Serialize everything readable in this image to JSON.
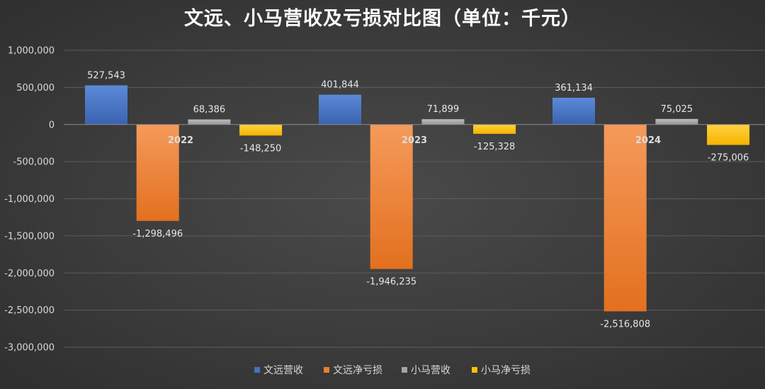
{
  "chart_data": {
    "type": "bar",
    "title": "文远、小马营收及亏损对比图（单位：千元）",
    "categories": [
      "2022",
      "2023",
      "2024"
    ],
    "series": [
      {
        "name": "文远营收",
        "values": [
          527543,
          401844,
          361134
        ],
        "labels": [
          "527,543",
          "401,844",
          "361,134"
        ],
        "color": "#4472c4"
      },
      {
        "name": "文远净亏损",
        "values": [
          -1298496,
          -1946235,
          -2516808
        ],
        "labels": [
          "-1,298,496",
          "-1,946,235",
          "-2,516,808"
        ],
        "color": "#ed7d31"
      },
      {
        "name": "小马营收",
        "values": [
          68386,
          71899,
          75025
        ],
        "labels": [
          "68,386",
          "71,899",
          "75,025"
        ],
        "color": "#a5a5a5"
      },
      {
        "name": "小马净亏损",
        "values": [
          -148250,
          -125328,
          -275006
        ],
        "labels": [
          "-148,250",
          "-125,328",
          "-275,006"
        ],
        "color": "#ffc000"
      }
    ],
    "ylim": [
      -3000000,
      1000000
    ],
    "yticks": [
      1000000,
      500000,
      0,
      -500000,
      -1000000,
      -1500000,
      -2000000,
      -2500000,
      -3000000
    ],
    "ytick_labels": [
      "1,000,000",
      "500,000",
      "0",
      "-500,000",
      "-1,000,000",
      "-1,500,000",
      "-2,000,000",
      "-2,500,000",
      "-3,000,000"
    ],
    "grid": true,
    "legend_position": "bottom"
  }
}
